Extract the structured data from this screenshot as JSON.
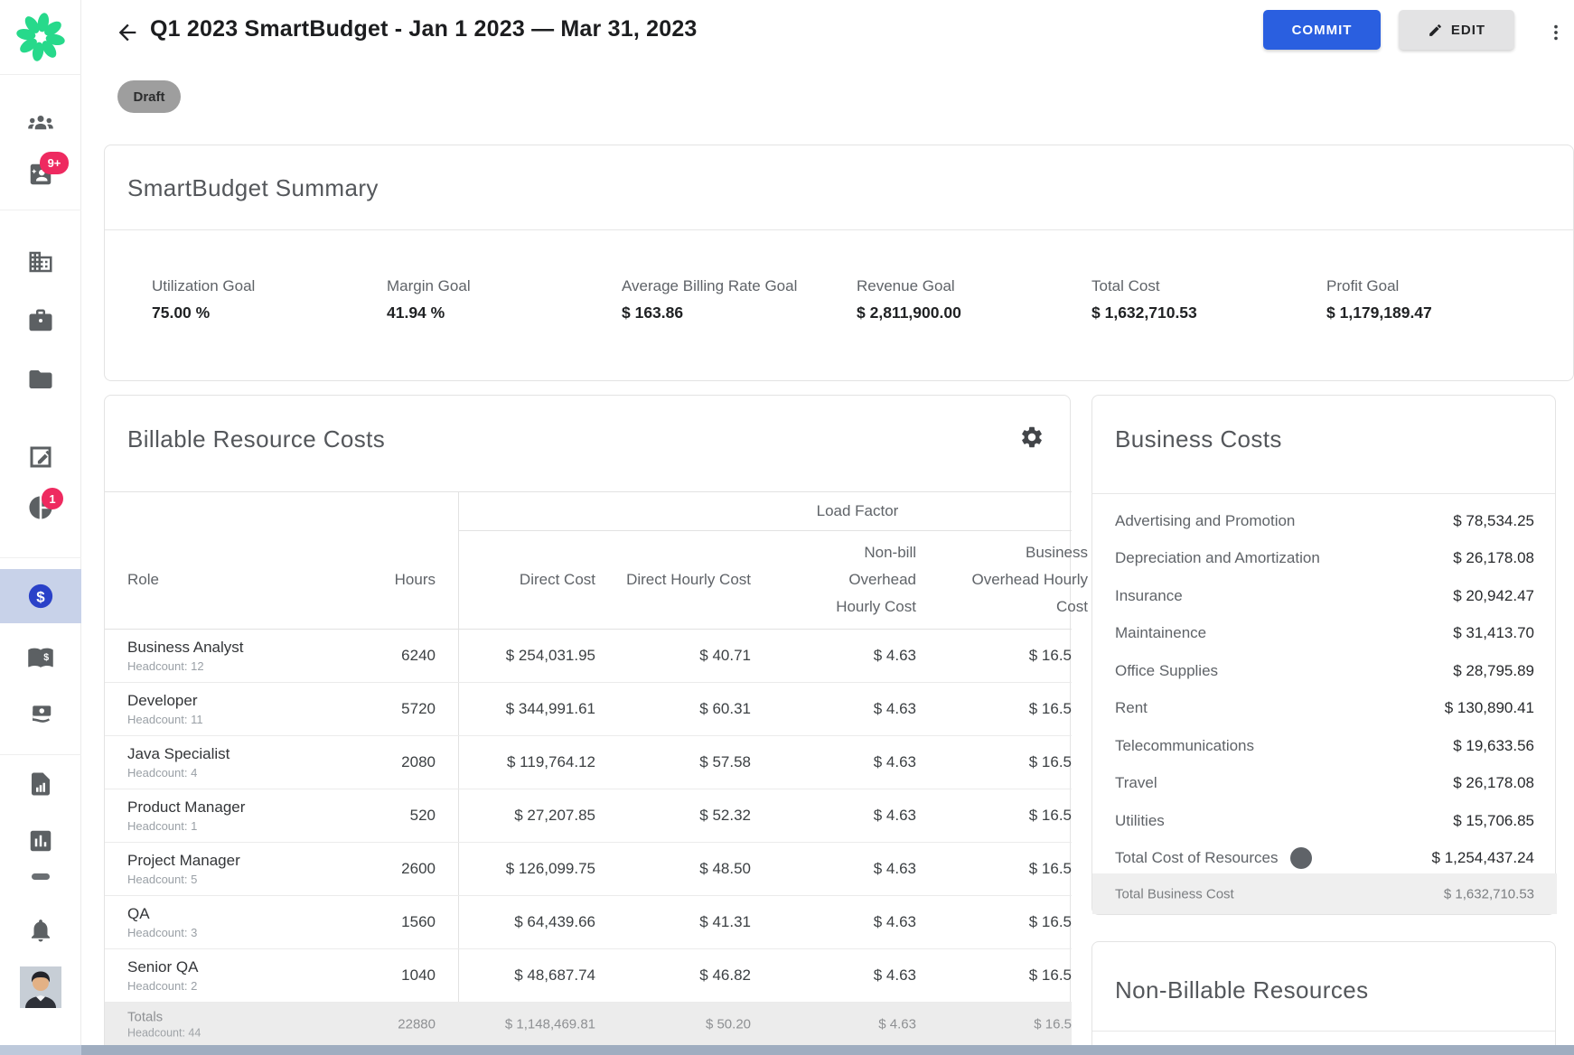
{
  "glyphs": {
    "dollar": "$",
    "help": "?"
  },
  "colors": {
    "accent_blue": "#2a5fe0",
    "badge_pink": "#ee2a60",
    "logo_green": "#27d98b",
    "selected_icon_blue": "#2a41c8",
    "bottom_bar": "#9fadc0"
  },
  "sidebar": {
    "icons": [
      "team-icon",
      "media-badge-icon",
      "company-icon",
      "projects-briefcase-icon",
      "folder-icon",
      "report-edit-icon",
      "allocation-pie-icon",
      "budget-dollar-icon",
      "rates-book-icon",
      "payments-icon",
      "invoice-doc-icon",
      "analytics-icon",
      "collapse-icon",
      "notifications-icon",
      "user-avatar"
    ],
    "badges": {
      "media_count": "9+",
      "allocation_count": "1"
    }
  },
  "header": {
    "title": "Q1 2023 SmartBudget - Jan 1 2023 — Mar 31, 2023",
    "commit_label": "COMMIT",
    "edit_label": "EDIT",
    "status_badge": "Draft"
  },
  "summary": {
    "title": "SmartBudget Summary",
    "stats": [
      {
        "label": "Utilization Goal",
        "value": "75.00 %"
      },
      {
        "label": "Margin Goal",
        "value": "41.94 %"
      },
      {
        "label": "Average Billing Rate Goal",
        "value": "$ 163.86"
      },
      {
        "label": "Revenue Goal",
        "value": "$ 2,811,900.00"
      },
      {
        "label": "Total Cost",
        "value": "$ 1,632,710.53"
      },
      {
        "label": "Profit Goal",
        "value": "$ 1,179,189.47"
      }
    ]
  },
  "billable": {
    "title": "Billable Resource Costs",
    "load_factor_label": "Load Factor",
    "columns": [
      "Role",
      "Hours",
      "Direct Cost",
      "Direct Hourly Cost",
      "Non-bill Overhead Hourly Cost",
      "Business Overhead Hourly Cost"
    ],
    "rows": [
      {
        "role": "Business Analyst",
        "headcount": "Headcount: 12",
        "hours": "6240",
        "direct_cost": "$ 254,031.95",
        "direct_hourly": "$ 40.71",
        "nonbill_overhead": "$ 4.63",
        "business_overhead": "$ 16.5"
      },
      {
        "role": "Developer",
        "headcount": "Headcount: 11",
        "hours": "5720",
        "direct_cost": "$ 344,991.61",
        "direct_hourly": "$ 60.31",
        "nonbill_overhead": "$ 4.63",
        "business_overhead": "$ 16.5"
      },
      {
        "role": "Java Specialist",
        "headcount": "Headcount: 4",
        "hours": "2080",
        "direct_cost": "$ 119,764.12",
        "direct_hourly": "$ 57.58",
        "nonbill_overhead": "$ 4.63",
        "business_overhead": "$ 16.5"
      },
      {
        "role": "Product Manager",
        "headcount": "Headcount: 1",
        "hours": "520",
        "direct_cost": "$ 27,207.85",
        "direct_hourly": "$ 52.32",
        "nonbill_overhead": "$ 4.63",
        "business_overhead": "$ 16.5"
      },
      {
        "role": "Project Manager",
        "headcount": "Headcount: 5",
        "hours": "2600",
        "direct_cost": "$ 126,099.75",
        "direct_hourly": "$ 48.50",
        "nonbill_overhead": "$ 4.63",
        "business_overhead": "$ 16.5"
      },
      {
        "role": "QA",
        "headcount": "Headcount: 3",
        "hours": "1560",
        "direct_cost": "$ 64,439.66",
        "direct_hourly": "$ 41.31",
        "nonbill_overhead": "$ 4.63",
        "business_overhead": "$ 16.5"
      },
      {
        "role": "Senior QA",
        "headcount": "Headcount: 2",
        "hours": "1040",
        "direct_cost": "$ 48,687.74",
        "direct_hourly": "$ 46.82",
        "nonbill_overhead": "$ 4.63",
        "business_overhead": "$ 16.5"
      }
    ],
    "totals": {
      "role": "Totals",
      "headcount": "Headcount: 44",
      "hours": "22880",
      "direct_cost": "$ 1,148,469.81",
      "direct_hourly": "$ 50.20",
      "nonbill_overhead": "$ 4.63",
      "business_overhead": "$ 16.5"
    }
  },
  "business_costs": {
    "title": "Business Costs",
    "items": [
      {
        "label": "Advertising and Promotion",
        "value": "$ 78,534.25"
      },
      {
        "label": "Depreciation and Amortization",
        "value": "$ 26,178.08"
      },
      {
        "label": "Insurance",
        "value": "$ 20,942.47"
      },
      {
        "label": "Maintainence",
        "value": "$ 31,413.70"
      },
      {
        "label": "Office Supplies",
        "value": "$ 28,795.89"
      },
      {
        "label": "Rent",
        "value": "$ 130,890.41"
      },
      {
        "label": "Telecommunications",
        "value": "$ 19,633.56"
      },
      {
        "label": "Travel",
        "value": "$ 26,178.08"
      },
      {
        "label": "Utilities",
        "value": "$ 15,706.85"
      },
      {
        "label": "Total Cost of Resources",
        "value": "$ 1,254,437.24",
        "has_help": true
      }
    ],
    "total_row": {
      "label": "Total Business Cost",
      "value": "$ 1,632,710.53"
    }
  },
  "non_billable": {
    "title": "Non-Billable Resources"
  }
}
